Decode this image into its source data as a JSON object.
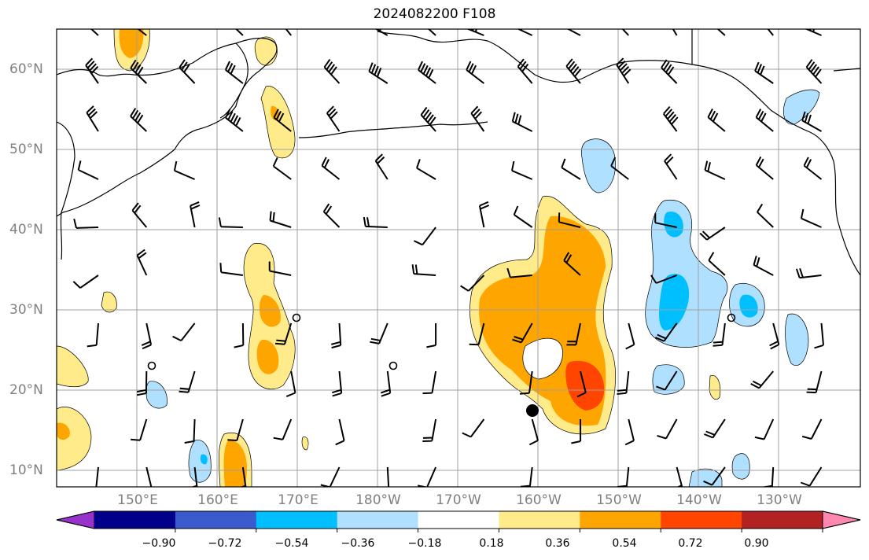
{
  "title": "2024082200 F108",
  "map": {
    "lat_labels": [
      "60°N",
      "50°N",
      "40°N",
      "30°N",
      "20°N",
      "10°N"
    ],
    "lon_labels": [
      "150°E",
      "160°E",
      "170°E",
      "180°W",
      "170°W",
      "160°W",
      "150°W",
      "140°W",
      "130°W"
    ],
    "colors": {
      "pos1": "#ffeb8a",
      "pos2": "#ffa500",
      "pos3": "#ff4500",
      "neg1": "#b0e0ff",
      "neg2": "#00bfff",
      "grid": "#a0a0a0",
      "coast": "#000000"
    },
    "storm_marker": "black-dot"
  },
  "colorbar": {
    "colors": [
      "#9932cc",
      "#00008b",
      "#3a5bcd",
      "#00bfff",
      "#b0e0ff",
      "#ffffff",
      "#ffeb8a",
      "#ffa500",
      "#ff4500",
      "#b22222",
      "#ff88b0"
    ],
    "tick_labels": [
      "−0.90",
      "−0.72",
      "−0.54",
      "−0.36",
      "−0.18",
      "0.18",
      "0.36",
      "0.54",
      "0.72",
      "0.90"
    ]
  }
}
